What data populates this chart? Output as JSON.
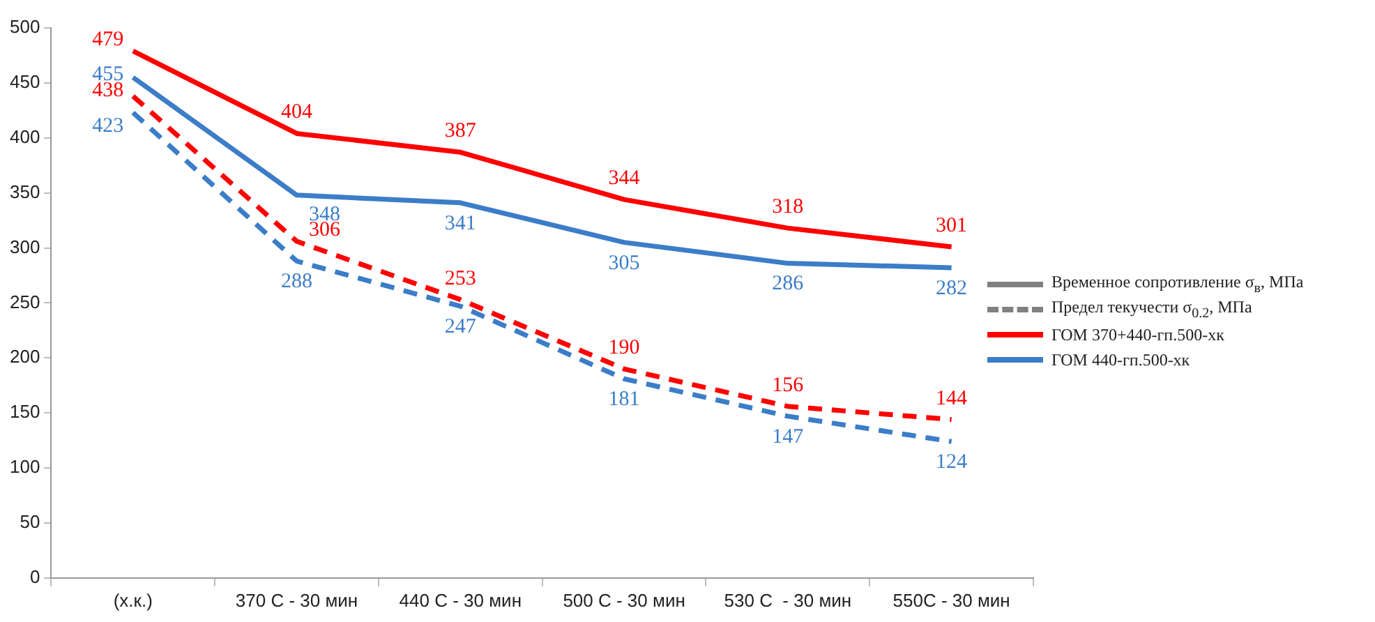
{
  "chart_data": {
    "type": "line",
    "categories": [
      "(х.к.)",
      "370 С - 30 мин",
      "440 С - 30 мин",
      "500 С - 30 мин",
      "530 С  - 30 мин",
      "550С - 30 мин"
    ],
    "ylim": [
      0,
      500
    ],
    "yticks": [
      0,
      50,
      100,
      150,
      200,
      250,
      300,
      350,
      400,
      450,
      500
    ],
    "grid": false,
    "legend": "right",
    "marker": "none",
    "data_labels": true,
    "series": [
      {
        "name": "Временное сопротивление σ$_{в}$, МПа",
        "color": "#808080",
        "line_style": "solid",
        "values": [
          null,
          null,
          null,
          null,
          null,
          null
        ]
      },
      {
        "name": "Предел текучести σ$_{0.2}$, МПа",
        "color": "#808080",
        "line_style": "dashed",
        "values": [
          null,
          null,
          null,
          null,
          null,
          null
        ]
      },
      {
        "name": "ГОМ 370+440-гп.500-хк",
        "color": "#ff0000",
        "line_style": "solid",
        "values": [
          479,
          404,
          387,
          344,
          318,
          301
        ]
      },
      {
        "name": "ГОМ 440-гп.500-хк",
        "color": "#3b7dc8",
        "line_style": "solid",
        "values": [
          455,
          348,
          341,
          305,
          286,
          282
        ]
      },
      {
        "color": "#ff0000",
        "line_style": "dashed",
        "values": [
          438,
          306,
          253,
          190,
          156,
          144
        ]
      },
      {
        "color": "#3b7dc8",
        "line_style": "dashed",
        "values": [
          423,
          288,
          247,
          181,
          147,
          124
        ]
      }
    ]
  }
}
